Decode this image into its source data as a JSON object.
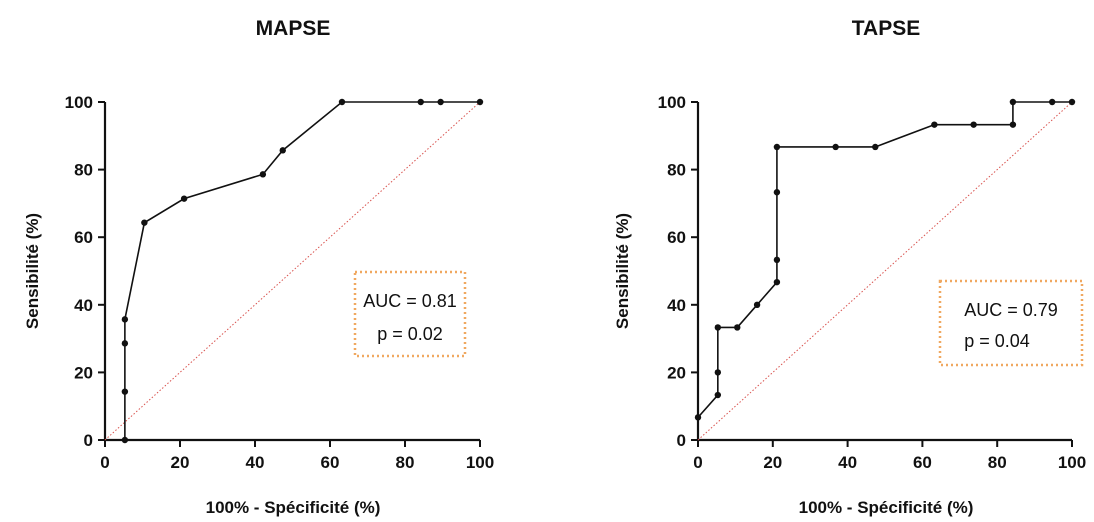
{
  "chart_data": [
    {
      "type": "line",
      "title": "MAPSE",
      "xlabel": "100% - Spécificité (%)",
      "ylabel": "Sensibilité (%)",
      "xlim": [
        0,
        100
      ],
      "ylim": [
        0,
        100
      ],
      "xticks": [
        "0",
        "20",
        "40",
        "60",
        "80",
        "100"
      ],
      "yticks": [
        "0",
        "20",
        "40",
        "60",
        "80",
        "100"
      ],
      "grid": false,
      "series": [
        {
          "x": [
            5.3,
            5.3,
            5.3,
            5.3,
            10.5,
            21.1,
            42.1,
            47.4,
            63.2,
            84.2,
            89.5,
            100
          ],
          "y": [
            0,
            14.3,
            28.6,
            35.7,
            64.3,
            71.4,
            78.6,
            85.7,
            100,
            100,
            100,
            100
          ]
        }
      ],
      "reference_line": {
        "x": [
          0,
          100
        ],
        "y": [
          0,
          100
        ],
        "color": "#d9534f"
      },
      "annotation": {
        "lines": [
          "AUC = 0.81",
          "p = 0.02"
        ],
        "border_color": "#f0a860"
      }
    },
    {
      "type": "line",
      "title": "TAPSE",
      "xlabel": "100% - Spécificité (%)",
      "ylabel": "Sensibilité (%)",
      "xlim": [
        0,
        100
      ],
      "ylim": [
        0,
        100
      ],
      "xticks": [
        "0",
        "20",
        "40",
        "60",
        "80",
        "100"
      ],
      "yticks": [
        "0",
        "20",
        "40",
        "60",
        "80",
        "100"
      ],
      "grid": false,
      "series": [
        {
          "x": [
            0,
            5.3,
            5.3,
            5.3,
            10.5,
            15.8,
            21.1,
            21.1,
            21.1,
            21.1,
            36.8,
            47.4,
            63.2,
            73.7,
            84.2,
            84.2,
            94.7,
            100
          ],
          "y": [
            6.7,
            13.3,
            20,
            33.3,
            33.3,
            40,
            46.7,
            53.3,
            73.3,
            86.7,
            86.7,
            86.7,
            93.3,
            93.3,
            93.3,
            100,
            100,
            100
          ]
        }
      ],
      "reference_line": {
        "x": [
          0,
          100
        ],
        "y": [
          0,
          100
        ],
        "color": "#d9534f"
      },
      "annotation": {
        "lines": [
          "AUC = 0.79",
          "p = 0.04"
        ],
        "border_color": "#f0a860"
      }
    }
  ]
}
